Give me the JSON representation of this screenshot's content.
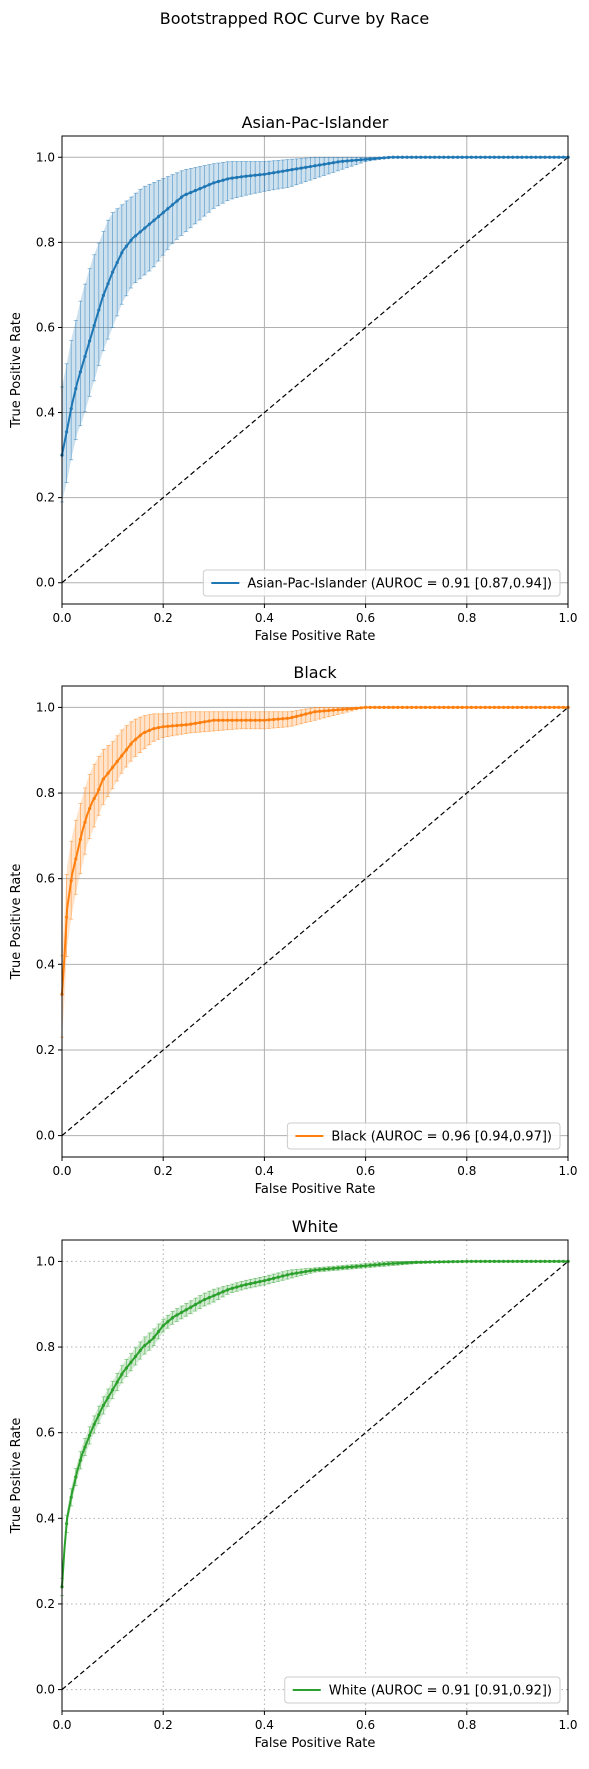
{
  "suptitle": "Bootstrapped ROC Curve by Race",
  "chart_data": [
    {
      "type": "line",
      "title": "Asian-Pac-Islander",
      "xlabel": "False Positive Rate",
      "ylabel": "True Positive Rate",
      "xlim": [
        0,
        1
      ],
      "ylim": [
        -0.05,
        1.05
      ],
      "xticks": [
        "0.0",
        "0.2",
        "0.4",
        "0.6",
        "0.8",
        "1.0"
      ],
      "yticks": [
        "0.0",
        "0.2",
        "0.4",
        "0.6",
        "0.8",
        "1.0"
      ],
      "grid": "solid",
      "legend_position": "lower-right",
      "color": "#1f77b4",
      "series": [
        {
          "name": "Asian-Pac-Islander (AUROC = 0.91 [0.87,0.94])",
          "x": [
            0,
            0.01,
            0.02,
            0.03,
            0.04,
            0.05,
            0.06,
            0.07,
            0.08,
            0.09,
            0.1,
            0.12,
            0.14,
            0.16,
            0.18,
            0.2,
            0.22,
            0.24,
            0.26,
            0.28,
            0.3,
            0.33,
            0.36,
            0.4,
            0.45,
            0.5,
            0.55,
            0.6,
            0.65,
            0.7,
            0.8,
            0.9,
            1.0
          ],
          "y": [
            0.3,
            0.36,
            0.42,
            0.47,
            0.51,
            0.55,
            0.59,
            0.63,
            0.67,
            0.7,
            0.73,
            0.78,
            0.81,
            0.83,
            0.85,
            0.87,
            0.89,
            0.91,
            0.92,
            0.93,
            0.94,
            0.95,
            0.955,
            0.96,
            0.97,
            0.98,
            0.99,
            0.995,
            1.0,
            1.0,
            1.0,
            1.0,
            1.0
          ],
          "ci_low": [
            0.19,
            0.24,
            0.3,
            0.35,
            0.38,
            0.42,
            0.46,
            0.5,
            0.54,
            0.57,
            0.6,
            0.66,
            0.7,
            0.72,
            0.74,
            0.77,
            0.8,
            0.82,
            0.84,
            0.86,
            0.88,
            0.9,
            0.91,
            0.92,
            0.93,
            0.95,
            0.97,
            0.99,
            1.0,
            1.0,
            1.0,
            1.0,
            1.0
          ],
          "ci_high": [
            0.46,
            0.52,
            0.58,
            0.63,
            0.68,
            0.72,
            0.76,
            0.79,
            0.82,
            0.85,
            0.87,
            0.89,
            0.91,
            0.93,
            0.94,
            0.95,
            0.96,
            0.97,
            0.975,
            0.98,
            0.985,
            0.99,
            0.99,
            0.99,
            0.995,
            1.0,
            1.0,
            1.0,
            1.0,
            1.0,
            1.0,
            1.0,
            1.0
          ]
        }
      ]
    },
    {
      "type": "line",
      "title": "Black",
      "xlabel": "False Positive Rate",
      "ylabel": "True Positive Rate",
      "xlim": [
        0,
        1
      ],
      "ylim": [
        -0.05,
        1.05
      ],
      "xticks": [
        "0.0",
        "0.2",
        "0.4",
        "0.6",
        "0.8",
        "1.0"
      ],
      "yticks": [
        "0.0",
        "0.2",
        "0.4",
        "0.6",
        "0.8",
        "1.0"
      ],
      "grid": "solid",
      "legend_position": "lower-right",
      "color": "#ff7f0e",
      "series": [
        {
          "name": "Black (AUROC = 0.96 [0.94,0.97])",
          "x": [
            0,
            0.005,
            0.01,
            0.02,
            0.03,
            0.04,
            0.05,
            0.06,
            0.07,
            0.08,
            0.1,
            0.12,
            0.14,
            0.16,
            0.18,
            0.2,
            0.25,
            0.3,
            0.35,
            0.4,
            0.45,
            0.5,
            0.55,
            0.6,
            0.7,
            0.8,
            0.9,
            1.0
          ],
          "y": [
            0.33,
            0.42,
            0.53,
            0.61,
            0.66,
            0.71,
            0.75,
            0.78,
            0.8,
            0.83,
            0.86,
            0.89,
            0.92,
            0.94,
            0.95,
            0.955,
            0.96,
            0.97,
            0.97,
            0.97,
            0.975,
            0.99,
            0.995,
            1.0,
            1.0,
            1.0,
            1.0,
            1.0
          ],
          "ci_low": [
            0.23,
            0.32,
            0.44,
            0.52,
            0.58,
            0.63,
            0.68,
            0.71,
            0.74,
            0.77,
            0.81,
            0.85,
            0.88,
            0.9,
            0.92,
            0.93,
            0.94,
            0.945,
            0.95,
            0.95,
            0.955,
            0.97,
            0.985,
            1.0,
            1.0,
            1.0,
            1.0,
            1.0
          ],
          "ci_high": [
            0.42,
            0.52,
            0.63,
            0.7,
            0.75,
            0.79,
            0.83,
            0.86,
            0.88,
            0.9,
            0.92,
            0.95,
            0.97,
            0.98,
            0.985,
            0.985,
            0.99,
            0.99,
            0.99,
            0.99,
            0.99,
            1.0,
            1.0,
            1.0,
            1.0,
            1.0,
            1.0,
            1.0
          ]
        }
      ]
    },
    {
      "type": "line",
      "title": "White",
      "xlabel": "False Positive Rate",
      "ylabel": "True Positive Rate",
      "xlim": [
        0,
        1
      ],
      "ylim": [
        -0.05,
        1.05
      ],
      "xticks": [
        "0.0",
        "0.2",
        "0.4",
        "0.6",
        "0.8",
        "1.0"
      ],
      "yticks": [
        "0.0",
        "0.2",
        "0.4",
        "0.6",
        "0.8",
        "1.0"
      ],
      "grid": "dotted",
      "legend_position": "lower-right",
      "color": "#2ca02c",
      "series": [
        {
          "name": "White (AUROC = 0.91 [0.91,0.92])",
          "x": [
            0,
            0.005,
            0.01,
            0.02,
            0.03,
            0.04,
            0.05,
            0.06,
            0.08,
            0.1,
            0.12,
            0.14,
            0.16,
            0.18,
            0.2,
            0.22,
            0.25,
            0.28,
            0.3,
            0.33,
            0.36,
            0.4,
            0.45,
            0.5,
            0.55,
            0.6,
            0.65,
            0.7,
            0.8,
            0.9,
            1.0
          ],
          "y": [
            0.24,
            0.33,
            0.4,
            0.46,
            0.51,
            0.55,
            0.58,
            0.61,
            0.66,
            0.7,
            0.74,
            0.77,
            0.8,
            0.82,
            0.85,
            0.87,
            0.89,
            0.91,
            0.92,
            0.935,
            0.945,
            0.955,
            0.97,
            0.98,
            0.985,
            0.99,
            0.995,
            0.998,
            1.0,
            1.0,
            1.0
          ],
          "ci_low": [
            0.22,
            0.31,
            0.38,
            0.44,
            0.49,
            0.53,
            0.56,
            0.59,
            0.64,
            0.68,
            0.72,
            0.75,
            0.78,
            0.8,
            0.835,
            0.855,
            0.875,
            0.895,
            0.905,
            0.925,
            0.935,
            0.945,
            0.96,
            0.975,
            0.98,
            0.985,
            0.99,
            0.995,
            1.0,
            1.0,
            1.0
          ],
          "ci_high": [
            0.26,
            0.35,
            0.42,
            0.48,
            0.53,
            0.57,
            0.6,
            0.63,
            0.68,
            0.72,
            0.76,
            0.79,
            0.82,
            0.84,
            0.865,
            0.885,
            0.905,
            0.925,
            0.935,
            0.945,
            0.955,
            0.965,
            0.98,
            0.985,
            0.99,
            0.995,
            1.0,
            1.0,
            1.0,
            1.0,
            1.0
          ]
        }
      ]
    }
  ]
}
